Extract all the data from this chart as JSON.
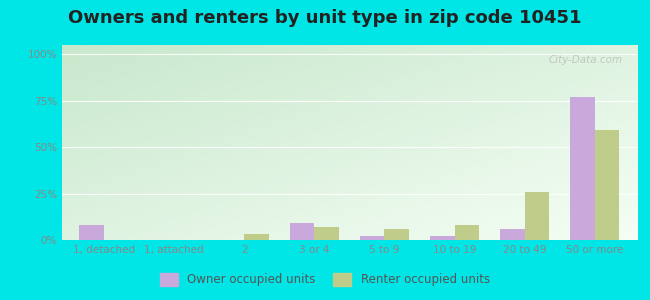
{
  "title": "Owners and renters by unit type in zip code 10451",
  "categories": [
    "1, detached",
    "1, attached",
    "2",
    "3 or 4",
    "5 to 9",
    "10 to 19",
    "20 to 49",
    "50 or more"
  ],
  "owner_values": [
    8,
    0,
    0,
    9,
    2,
    2,
    6,
    77
  ],
  "renter_values": [
    0,
    0,
    3,
    7,
    6,
    8,
    26,
    59
  ],
  "owner_color": "#c9a8dc",
  "renter_color": "#bfcc8a",
  "outer_bg": "#00e5e5",
  "plot_bg_topleft": "#c8e8cc",
  "plot_bg_topright": "#eaf5ea",
  "plot_bg_bottom": "#f8fef0",
  "ylabel_ticks": [
    "0%",
    "25%",
    "50%",
    "75%",
    "100%"
  ],
  "ytick_vals": [
    0,
    25,
    50,
    75,
    100
  ],
  "ylim": [
    0,
    105
  ],
  "title_fontsize": 13,
  "tick_fontsize": 7.5,
  "legend_label_owner": "Owner occupied units",
  "legend_label_renter": "Renter occupied units",
  "bar_width": 0.35,
  "watermark": "City-Data.com",
  "grid_color": "#d0e8d0",
  "tick_color": "#888888"
}
